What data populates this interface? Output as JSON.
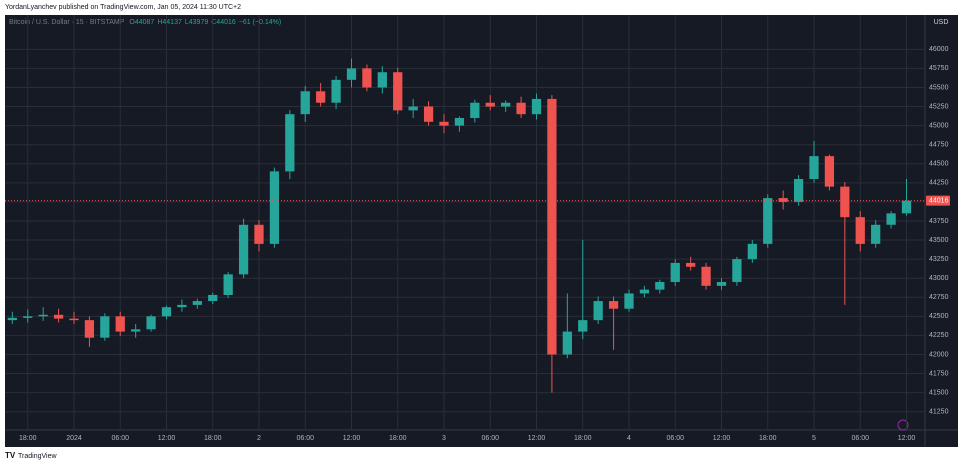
{
  "chart_data": {
    "type": "candlestick",
    "title": "YordanLyanchev published on TradingView.com, Jan 05, 2024 11:30 UTC+2",
    "symbol": "Bitcoin / U.S. Dollar · 15 · BITSTAMP",
    "ohlc_labels": [
      "O",
      "H",
      "L",
      "C"
    ],
    "ohlc_values": [
      44087,
      44137,
      43979,
      44016
    ],
    "change": "−61 (−0.14%)",
    "currency": "USD",
    "last_price": 44016,
    "brand": "TradingView",
    "up_color": "#26a69a",
    "down_color": "#ef5350",
    "grid": true,
    "x": [
      -8,
      -6,
      -4,
      -2,
      0,
      2,
      4,
      6,
      8,
      10,
      12,
      14,
      16,
      18,
      20,
      22,
      24,
      26,
      28,
      30,
      32,
      34,
      36,
      38,
      40,
      42,
      44,
      46,
      48,
      50,
      52,
      54,
      56,
      58,
      60,
      62,
      64,
      66,
      68,
      70,
      72,
      74,
      76,
      78,
      80,
      82,
      84,
      86,
      88,
      90,
      92,
      94,
      96,
      98,
      100,
      102,
      104,
      106,
      108
    ],
    "open": [
      42450,
      42480,
      42500,
      42520,
      42470,
      42450,
      42220,
      42500,
      42300,
      42330,
      42500,
      42620,
      42650,
      42700,
      42780,
      43050,
      43700,
      43450,
      44400,
      45150,
      45450,
      45300,
      45600,
      45750,
      45500,
      45700,
      45200,
      45250,
      45050,
      45000,
      45100,
      45300,
      45250,
      45300,
      45150,
      45350,
      42000,
      42300,
      42450,
      42700,
      42600,
      42800,
      42850,
      42950,
      43200,
      43150,
      42900,
      42950,
      43250,
      43450,
      44050,
      44000,
      44300,
      44600,
      44200,
      43800,
      43450,
      43700,
      43850
    ],
    "high": [
      42560,
      42590,
      42620,
      42600,
      42560,
      42500,
      42540,
      42560,
      42400,
      42520,
      42640,
      42720,
      42730,
      42810,
      43080,
      43780,
      43760,
      44450,
      45200,
      45520,
      45560,
      45650,
      45880,
      45800,
      45780,
      45760,
      45350,
      45320,
      45150,
      45120,
      45340,
      45400,
      45330,
      45380,
      45420,
      45400,
      42800,
      43500,
      42760,
      42760,
      42850,
      42900,
      42980,
      43250,
      43280,
      43200,
      43000,
      43280,
      43500,
      44100,
      44150,
      44350,
      44800,
      44620,
      44260,
      43880,
      43760,
      43880,
      44300
    ],
    "low": [
      42400,
      42420,
      42440,
      42420,
      42400,
      42100,
      42180,
      42240,
      42220,
      42300,
      42460,
      42560,
      42600,
      42660,
      42740,
      43000,
      43350,
      43400,
      44300,
      45050,
      45250,
      45220,
      45500,
      45450,
      45420,
      45150,
      45100,
      45000,
      44900,
      44920,
      45040,
      45200,
      45180,
      45100,
      45080,
      41500,
      41950,
      42200,
      42400,
      42060,
      42560,
      42750,
      42800,
      42900,
      43100,
      42850,
      42850,
      42900,
      43200,
      43400,
      43900,
      43950,
      44250,
      44150,
      42650,
      43350,
      43400,
      43650,
      43820
    ],
    "close": [
      42480,
      42500,
      42520,
      42470,
      42450,
      42220,
      42500,
      42300,
      42330,
      42500,
      42620,
      42650,
      42700,
      42780,
      43050,
      43700,
      43450,
      44400,
      45150,
      45450,
      45300,
      45600,
      45750,
      45500,
      45700,
      45200,
      45250,
      45050,
      45000,
      45100,
      45300,
      45250,
      45300,
      45150,
      45350,
      42000,
      42300,
      42450,
      42700,
      42600,
      42800,
      42850,
      42950,
      43200,
      43150,
      42900,
      42950,
      43250,
      43450,
      44050,
      44000,
      44300,
      44600,
      44200,
      43800,
      43450,
      43700,
      43850,
      44016
    ],
    "xlim": [
      -8.95,
      110.4
    ],
    "xticks": [
      {
        "value": -6,
        "label": "18:00"
      },
      {
        "value": 0,
        "label": "2024"
      },
      {
        "value": 6,
        "label": "06:00"
      },
      {
        "value": 12,
        "label": "12:00"
      },
      {
        "value": 18,
        "label": "18:00"
      },
      {
        "value": 24,
        "label": "2"
      },
      {
        "value": 30,
        "label": "06:00"
      },
      {
        "value": 36,
        "label": "12:00"
      },
      {
        "value": 42,
        "label": "18:00"
      },
      {
        "value": 48,
        "label": "3"
      },
      {
        "value": 54,
        "label": "06:00"
      },
      {
        "value": 60,
        "label": "12:00"
      },
      {
        "value": 66,
        "label": "18:00"
      },
      {
        "value": 72,
        "label": "4"
      },
      {
        "value": 78,
        "label": "06:00"
      },
      {
        "value": 84,
        "label": "12:00"
      },
      {
        "value": 90,
        "label": "18:00"
      },
      {
        "value": 96,
        "label": "5"
      },
      {
        "value": 102,
        "label": "06:00"
      },
      {
        "value": 108,
        "label": "12:00"
      }
    ],
    "ylim": [
      41010,
      46450
    ],
    "yticks": [
      41250,
      41500,
      41750,
      42000,
      42250,
      42500,
      42750,
      43000,
      43250,
      43500,
      43750,
      44000,
      44250,
      44500,
      44750,
      45000,
      45250,
      45500,
      45750,
      46000
    ]
  }
}
